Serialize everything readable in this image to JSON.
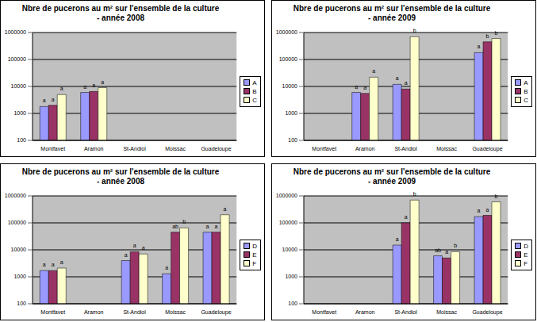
{
  "chart_data": [
    {
      "type": "bar",
      "title": "Nbre de pucerons au m² sur l'ensemble de la culture\n- année 2008",
      "categories": [
        "Montfavet",
        "Aramon",
        "St-Andiol",
        "Moissac",
        "Guadeloupe"
      ],
      "log": "y",
      "ylim": [
        100,
        1000000
      ],
      "yticks": [
        100,
        1000,
        10000,
        100000,
        1000000
      ],
      "grid": true,
      "legend": "right",
      "series": [
        {
          "name": "A",
          "color": "#9999FF",
          "values": [
            1800,
            6000,
            null,
            null,
            null
          ],
          "letters": [
            "a",
            "a",
            null,
            null,
            null
          ]
        },
        {
          "name": "B",
          "color": "#993366",
          "values": [
            2000,
            6500,
            null,
            null,
            null
          ],
          "letters": [
            "a",
            "a",
            null,
            null,
            null
          ]
        },
        {
          "name": "C",
          "color": "#FFFFCC",
          "values": [
            5000,
            9000,
            null,
            null,
            null
          ],
          "letters": [
            "a",
            "a",
            null,
            null,
            null
          ]
        }
      ]
    },
    {
      "type": "bar",
      "title": "Nbre de pucerons au m² sur l'ensemble de la culture\n- année 2009",
      "categories": [
        "Montfavet",
        "Aramon",
        "St-Andiol",
        "Moissac",
        "Guadeloupe"
      ],
      "log": "y",
      "ylim": [
        100,
        1000000
      ],
      "yticks": [
        100,
        1000,
        10000,
        100000,
        1000000
      ],
      "grid": true,
      "legend": "right",
      "series": [
        {
          "name": "A",
          "color": "#9999FF",
          "values": [
            null,
            6000,
            12000,
            null,
            180000
          ],
          "letters": [
            null,
            "a",
            "a",
            null,
            "a"
          ]
        },
        {
          "name": "B",
          "color": "#993366",
          "values": [
            null,
            5500,
            8000,
            null,
            450000
          ],
          "letters": [
            null,
            "a",
            "a",
            null,
            "b"
          ]
        },
        {
          "name": "C",
          "color": "#FFFFCC",
          "values": [
            null,
            22000,
            700000,
            null,
            600000
          ],
          "letters": [
            null,
            "a",
            "b",
            null,
            "b"
          ]
        }
      ]
    },
    {
      "type": "bar",
      "title": "Nbre de pucerons au m² sur l'ensemble de la culture\n- année 2008",
      "categories": [
        "Montfavet",
        "Aramon",
        "St-Andiol",
        "Moissac",
        "Guadeloupe"
      ],
      "log": "y",
      "ylim": [
        100,
        1000000
      ],
      "yticks": [
        100,
        1000,
        10000,
        100000,
        1000000
      ],
      "grid": true,
      "legend": "right",
      "series": [
        {
          "name": "D",
          "color": "#9999FF",
          "values": [
            1700,
            null,
            4000,
            1300,
            45000
          ],
          "letters": [
            "a",
            null,
            "a",
            "a",
            "a"
          ]
        },
        {
          "name": "E",
          "color": "#993366",
          "values": [
            1700,
            null,
            8500,
            45000,
            45000
          ],
          "letters": [
            "a",
            null,
            "a",
            "ab",
            "a"
          ]
        },
        {
          "name": "F",
          "color": "#FFFFCC",
          "values": [
            2100,
            null,
            7000,
            65000,
            200000
          ],
          "letters": [
            "a",
            null,
            "a",
            "b",
            "a"
          ]
        }
      ]
    },
    {
      "type": "bar",
      "title": "Nbre de pucerons au m² sur l'ensemble de la culture\n- année 2009",
      "categories": [
        "Montfavet",
        "Aramon",
        "St-Andiol",
        "Moissac",
        "Guadeloupe"
      ],
      "log": "y",
      "ylim": [
        100,
        1000000
      ],
      "yticks": [
        100,
        1000,
        10000,
        100000,
        1000000
      ],
      "grid": true,
      "legend": "right",
      "series": [
        {
          "name": "D",
          "color": "#9999FF",
          "values": [
            null,
            null,
            15000,
            6000,
            170000
          ],
          "letters": [
            null,
            null,
            "a",
            "ab",
            "a"
          ]
        },
        {
          "name": "E",
          "color": "#993366",
          "values": [
            null,
            null,
            100000,
            5000,
            190000
          ],
          "letters": [
            null,
            null,
            "a",
            "a",
            "a"
          ]
        },
        {
          "name": "F",
          "color": "#FFFFCC",
          "values": [
            null,
            null,
            700000,
            8500,
            600000
          ],
          "letters": [
            null,
            null,
            "b",
            "b",
            "b"
          ]
        }
      ]
    }
  ]
}
